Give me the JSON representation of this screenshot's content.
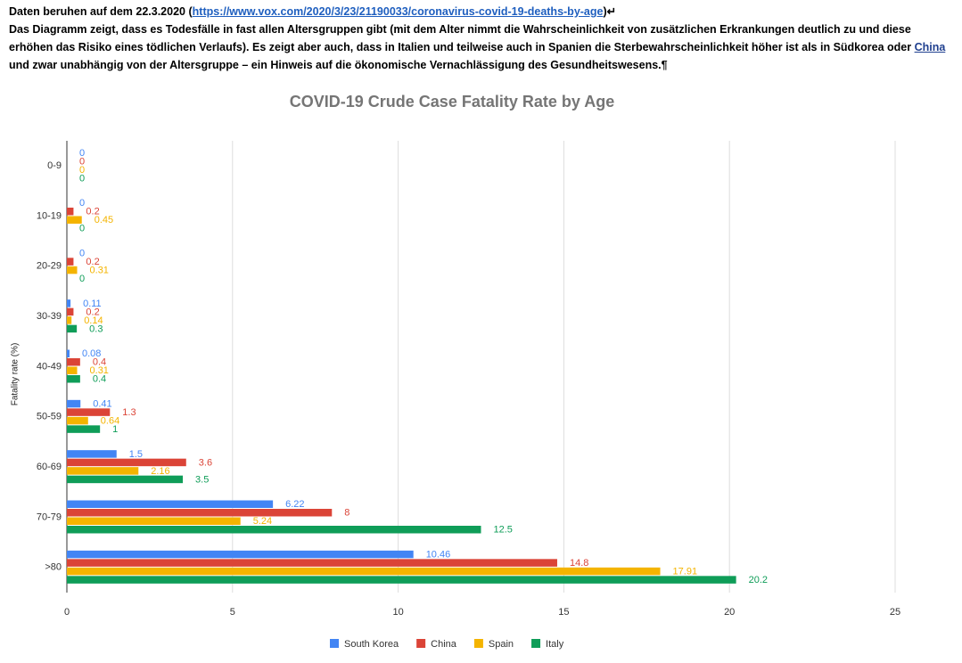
{
  "header": {
    "prefix": "Daten beruhen auf dem 22.3.2020 (",
    "link": "https://www.vox.com/2020/3/23/21190033/coronavirus-covid-19-deaths-by-age",
    "suffix": ")↵"
  },
  "paragraph": {
    "before": "Das Diagramm zeigt, dass es Todesfälle in fast allen Altersgruppen gibt (mit dem Alter nimmt die Wahrscheinlichkeit von zusätzlichen Erkrankungen deutlich zu und diese erhöhen das Risiko eines tödlichen Verlaufs). Es zeigt aber auch, dass in Italien und teilweise auch in Spanien die Sterbewahrscheinlichkeit höher ist als in Südkorea oder ",
    "link": "China",
    "after": " und zwar unabhängig von der Altersgruppe – ein Hinweis auf die ökonomische Vernachlässigung des Gesundheitswesens.¶"
  },
  "chart_data": {
    "type": "bar",
    "orientation": "horizontal",
    "title": "COVID-19 Crude Case Fatality Rate by Age",
    "y_label": "Fatality rate (%)",
    "categories": [
      "0-9",
      "10-19",
      "20-29",
      "30-39",
      "40-49",
      "50-59",
      "60-69",
      "70-79",
      ">80"
    ],
    "series": [
      {
        "name": "South Korea",
        "color": "#4285f4",
        "values": [
          0,
          0,
          0,
          0.11,
          0.08,
          0.41,
          1.5,
          6.22,
          10.46
        ]
      },
      {
        "name": "China",
        "color": "#db4437",
        "values": [
          0,
          0.2,
          0.2,
          0.2,
          0.4,
          1.3,
          3.6,
          8,
          14.8
        ]
      },
      {
        "name": "Spain",
        "color": "#f4b400",
        "values": [
          0,
          0.45,
          0.31,
          0.14,
          0.31,
          0.64,
          2.16,
          5.24,
          17.91
        ]
      },
      {
        "name": "Italy",
        "color": "#0f9d58",
        "values": [
          0,
          0,
          0,
          0.3,
          0.4,
          1,
          3.5,
          12.5,
          20.2
        ]
      }
    ],
    "xlim": [
      0,
      25
    ],
    "xticks": [
      0,
      5,
      10,
      15,
      20,
      25
    ],
    "grid": true,
    "legend": "bottom"
  }
}
